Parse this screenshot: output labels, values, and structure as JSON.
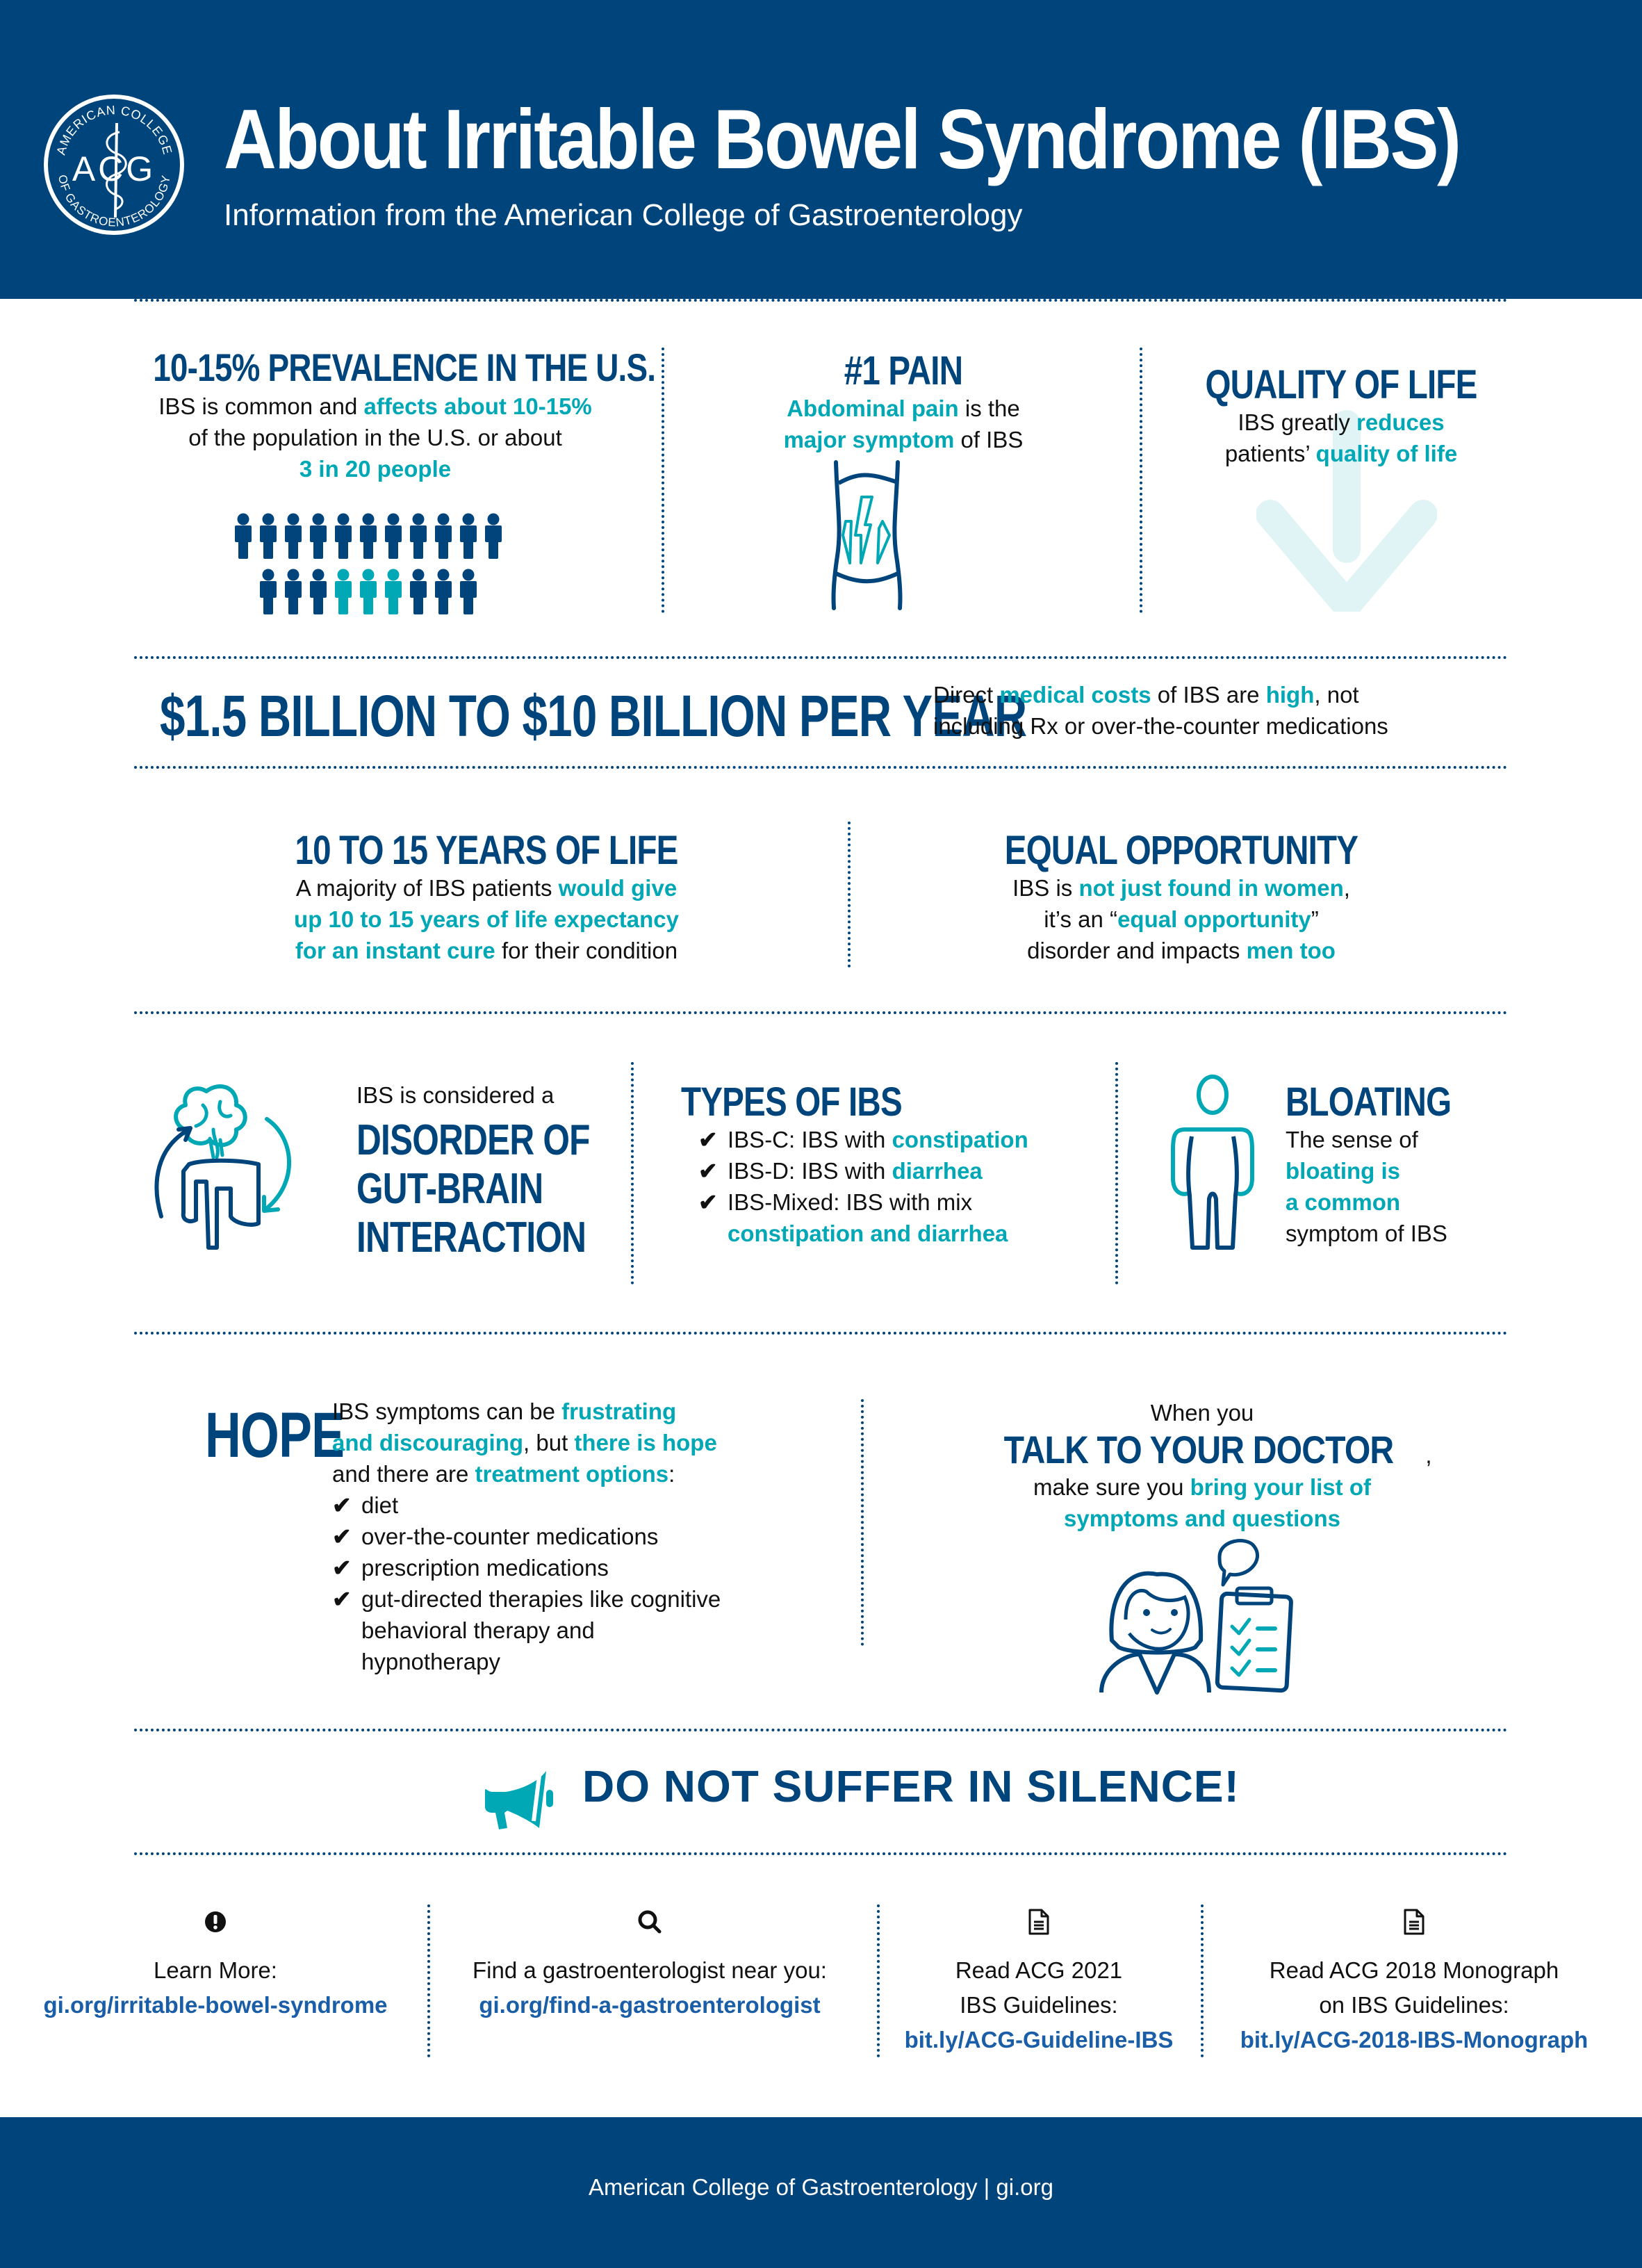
{
  "header": {
    "title": "About Irritable Bowel Syndrome (IBS)",
    "subtitle": "Information from the American College of Gastroenterology",
    "logo": {
      "letters": "ACG",
      "ring_top": "AMERICAN COLLEGE",
      "ring_bottom": "OF GASTROENTEROLOGY",
      "icon": "rod-of-asclepius-icon"
    }
  },
  "colors": {
    "navy": "#00447C",
    "teal": "#00A7B5",
    "link": "#1B5EA8",
    "arrow_light": "#E0F4F6"
  },
  "prevalence": {
    "heading": "10-15% PREVALENCE IN THE U.S.",
    "line1_a": "IBS is common and ",
    "line1_b": "affects about 10-15%",
    "line2": "of the population in the U.S. or about",
    "line3": "3 in 20 people",
    "people_row1_count": 11,
    "people_row2_count": 9,
    "highlighted_row2_positions": [
      4,
      5,
      6
    ],
    "icon": "people-icon"
  },
  "pain": {
    "heading": "#1 PAIN",
    "line1_a": "Abdominal pain",
    "line1_b": " is the",
    "line2_a": "major symptom",
    "line2_b": " of IBS",
    "icon": "abdomen-lightning-icon"
  },
  "quality": {
    "heading": "QUALITY OF LIFE",
    "line1_a": "IBS greatly ",
    "line1_b": "reduces",
    "line2_a": "patients’ ",
    "line2_b": "quality of life",
    "icon": "down-arrow-icon"
  },
  "cost": {
    "heading": "$1.5 BILLION TO $10 BILLION PER YEAR",
    "line1_a": "Direct ",
    "line1_b": "medical costs",
    "line1_c": " of IBS are ",
    "line1_d": "high",
    "line1_e": ", not",
    "line2": "including Rx or over-the-counter medications"
  },
  "years": {
    "heading": "10 TO 15 YEARS OF LIFE",
    "line1_a": "A majority of IBS patients ",
    "line1_b": "would give",
    "line2": "up 10 to 15 years of life expectancy",
    "line3_a": "for an instant cure",
    "line3_b": " for their condition"
  },
  "equal": {
    "heading": "EQUAL OPPORTUNITY",
    "line1_a": "IBS is ",
    "line1_b": "not just found in women",
    "line1_c": ",",
    "line2_a": "it’s an “",
    "line2_b": "equal opportunity",
    "line2_c": "”",
    "line3_a": "disorder and impacts ",
    "line3_b": "men too"
  },
  "gut_brain": {
    "intro": "IBS is considered a",
    "heading_lines": [
      "DISORDER OF",
      "GUT-BRAIN",
      "INTERACTION"
    ],
    "icon": "gut-brain-cycle-icon"
  },
  "types": {
    "heading": "TYPES OF IBS",
    "items": [
      {
        "label": "IBS-C: IBS with ",
        "highlight": "constipation"
      },
      {
        "label": "IBS-D: IBS with ",
        "highlight": "diarrhea"
      },
      {
        "label": "IBS-Mixed: IBS with mix",
        "highlight": "constipation and diarrhea"
      }
    ],
    "check_icon": "checkmark-icon"
  },
  "bloating": {
    "heading": "BLOATING",
    "line1": "The sense of",
    "line2": "bloating is",
    "line3": "a common",
    "line4": "symptom of IBS",
    "icon": "bloated-person-icon"
  },
  "hope": {
    "heading": "HOPE",
    "line1_a": "IBS symptoms can be ",
    "line1_b": "frustrating",
    "line2_a": "and discouraging",
    "line2_b": ", but ",
    "line2_c": "there is hope",
    "line3_a": "and there are ",
    "line3_b": "treatment options",
    "line3_c": ":",
    "options": [
      "diet",
      "over-the-counter medications",
      "prescription medications",
      "gut-directed therapies like cognitive behavioral therapy and hypnotherapy"
    ]
  },
  "doctor": {
    "intro": "When you",
    "heading": "TALK TO YOUR DOCTOR",
    "heading_suffix": ",",
    "line1_a": "make sure you ",
    "line1_b": "bring your list of",
    "line2": "symptoms and questions",
    "icon": "doctor-clipboard-icon"
  },
  "cta": {
    "text": "DO NOT SUFFER IN SILENCE!",
    "icon": "megaphone-icon"
  },
  "resources": [
    {
      "icon": "exclamation-icon",
      "label_lines": [
        "Learn More:"
      ],
      "link": "gi.org/irritable-bowel-syndrome"
    },
    {
      "icon": "search-icon",
      "label_lines": [
        "Find a gastroenterologist near you:"
      ],
      "link": "gi.org/find-a-gastroenterologist"
    },
    {
      "icon": "document-icon",
      "label_lines": [
        "Read ACG 2021",
        "IBS Guidelines:"
      ],
      "link": "bit.ly/ACG-Guideline-IBS"
    },
    {
      "icon": "document-icon",
      "label_lines": [
        "Read ACG 2018 Monograph",
        "on IBS Guidelines:"
      ],
      "link": "bit.ly/ACG-2018-IBS-Monograph"
    }
  ],
  "footer": {
    "text": "American College of Gastroenterology | gi.org"
  }
}
